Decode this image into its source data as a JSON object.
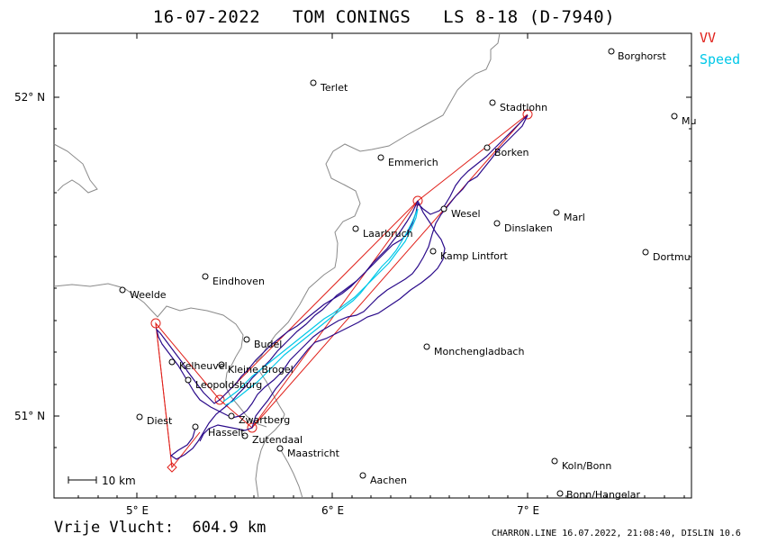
{
  "title": "16-07-2022   TOM CONINGS   LS 8-18 (D-7940)",
  "legend": {
    "vv": "VV",
    "speed": "Speed",
    "vv_color": "#e0201a",
    "speed_color": "#00c8e8",
    "track_color": "#2a0a8a"
  },
  "score": "Vrije Vlucht:  604.9 km",
  "footer": "CHARRON.LINE 16.07.2022, 21:08:40, DISLIN 10.6",
  "scale": {
    "label": "10 km"
  },
  "axes": {
    "lat_labels": [
      "52° N",
      "51° N"
    ],
    "lon_labels": [
      "5° E",
      "6° E",
      "7° E"
    ]
  },
  "places": [
    {
      "name": "Borghorst"
    },
    {
      "name": "Terlet"
    },
    {
      "name": "Stadtlohn"
    },
    {
      "name": "Mu"
    },
    {
      "name": "Borken"
    },
    {
      "name": "Emmerich"
    },
    {
      "name": "Wesel"
    },
    {
      "name": "Marl"
    },
    {
      "name": "Dinslaken"
    },
    {
      "name": "Laarbruch"
    },
    {
      "name": "Kamp Lintfort"
    },
    {
      "name": "Dortmu"
    },
    {
      "name": "Eindhoven"
    },
    {
      "name": "Weelde"
    },
    {
      "name": "Budel"
    },
    {
      "name": "Monchengladbach"
    },
    {
      "name": "Kelheuvel"
    },
    {
      "name": "Kleine Brogel"
    },
    {
      "name": "Leopoldsburg"
    },
    {
      "name": "Diest"
    },
    {
      "name": "Zwartberg"
    },
    {
      "name": "Hasselt"
    },
    {
      "name": "Zutendaal"
    },
    {
      "name": "Maastricht"
    },
    {
      "name": "Aachen"
    },
    {
      "name": "Koln/Bonn"
    },
    {
      "name": "Bonn/Hangelar"
    }
  ]
}
